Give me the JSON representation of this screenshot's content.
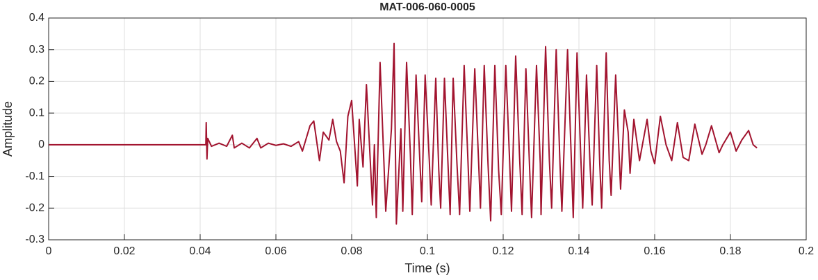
{
  "chart_data": {
    "type": "line",
    "title": "MAT-006-060-0005",
    "x_label": "Time (s)",
    "y_label": "Amplitude",
    "xlim": [
      0,
      0.2
    ],
    "xticks": [
      0,
      0.02,
      0.04,
      0.06,
      0.08,
      0.1,
      0.12,
      0.14,
      0.16,
      0.18,
      0.2
    ],
    "ylim": [
      -0.3,
      0.4
    ],
    "yticks": [
      -0.3,
      -0.2,
      -0.1,
      0,
      0.1,
      0.2,
      0.3,
      0.4
    ],
    "grid": true,
    "x": [
      0,
      0.0415,
      0.0416,
      0.0418,
      0.042,
      0.043,
      0.045,
      0.047,
      0.0485,
      0.049,
      0.051,
      0.053,
      0.055,
      0.056,
      0.058,
      0.06,
      0.062,
      0.064,
      0.066,
      0.067,
      0.069,
      0.07,
      0.0715,
      0.0725,
      0.074,
      0.075,
      0.076,
      0.077,
      0.078,
      0.079,
      0.08,
      0.0815,
      0.082,
      0.083,
      0.0839,
      0.0855,
      0.086,
      0.0865,
      0.0875,
      0.0885,
      0.089,
      0.0905,
      0.0912,
      0.0918,
      0.093,
      0.0935,
      0.0945,
      0.0955,
      0.096,
      0.097,
      0.098,
      0.0985,
      0.0994,
      0.1005,
      0.101,
      0.1022,
      0.103,
      0.1035,
      0.1045,
      0.1055,
      0.106,
      0.1068,
      0.1078,
      0.1085,
      0.1097,
      0.1107,
      0.1112,
      0.1125,
      0.1135,
      0.114,
      0.115,
      0.116,
      0.1167,
      0.1178,
      0.1188,
      0.1195,
      0.1207,
      0.1217,
      0.1222,
      0.1233,
      0.1243,
      0.125,
      0.126,
      0.127,
      0.1275,
      0.1288,
      0.1298,
      0.13,
      0.1312,
      0.1322,
      0.1328,
      0.134,
      0.135,
      0.1355,
      0.137,
      0.138,
      0.1385,
      0.1395,
      0.1405,
      0.141,
      0.142,
      0.143,
      0.1435,
      0.1447,
      0.1455,
      0.146,
      0.1472,
      0.148,
      0.1485,
      0.1497,
      0.1505,
      0.151,
      0.152,
      0.153,
      0.1535,
      0.1545,
      0.156,
      0.158,
      0.159,
      0.16,
      0.1615,
      0.163,
      0.1645,
      0.166,
      0.1675,
      0.169,
      0.1706,
      0.1725,
      0.1735,
      0.175,
      0.177,
      0.178,
      0.18,
      0.1815,
      0.183,
      0.1848,
      0.186,
      0.187
    ],
    "series": [
      {
        "color": "#a2142f",
        "values": [
          0,
          0,
          0.07,
          -0.045,
          0.02,
          -0.005,
          0.005,
          -0.005,
          0.03,
          -0.01,
          0.005,
          -0.01,
          0.02,
          -0.01,
          0.005,
          -0.002,
          0.003,
          -0.005,
          0.01,
          -0.02,
          0.06,
          0.075,
          -0.05,
          0.04,
          0.015,
          0.08,
          0.01,
          -0.02,
          -0.12,
          0.09,
          0.14,
          -0.13,
          0.08,
          -0.07,
          0.19,
          -0.19,
          0,
          -0.23,
          0.26,
          -0.05,
          -0.21,
          0.05,
          0.32,
          -0.25,
          0.05,
          -0.21,
          0.26,
          -0.03,
          -0.22,
          0.22,
          -0.05,
          -0.18,
          0.22,
          -0.05,
          -0.19,
          0.21,
          -0.08,
          -0.2,
          0.21,
          -0.08,
          -0.22,
          0.21,
          -0.06,
          -0.22,
          0.25,
          -0.05,
          -0.21,
          0.24,
          -0.05,
          -0.2,
          0.25,
          -0.06,
          -0.24,
          0.25,
          -0.08,
          -0.22,
          0.25,
          -0.05,
          -0.21,
          0.28,
          -0.03,
          -0.22,
          0.24,
          -0.08,
          -0.23,
          0.25,
          -0.06,
          -0.22,
          0.31,
          -0.05,
          -0.2,
          0.3,
          -0.06,
          -0.21,
          0.3,
          -0.05,
          -0.23,
          0.29,
          -0.04,
          -0.2,
          0.22,
          -0.08,
          -0.19,
          0.25,
          -0.06,
          -0.2,
          0.29,
          -0.05,
          -0.16,
          0.22,
          0,
          -0.14,
          0.11,
          0.04,
          -0.09,
          0.08,
          -0.05,
          0.08,
          -0.02,
          -0.06,
          0.09,
          0,
          -0.05,
          0.07,
          -0.04,
          -0.05,
          0.065,
          -0.03,
          0,
          0.06,
          -0.025,
          0,
          0.04,
          -0.02,
          0.015,
          0.045,
          0,
          -0.01
        ]
      }
    ]
  }
}
